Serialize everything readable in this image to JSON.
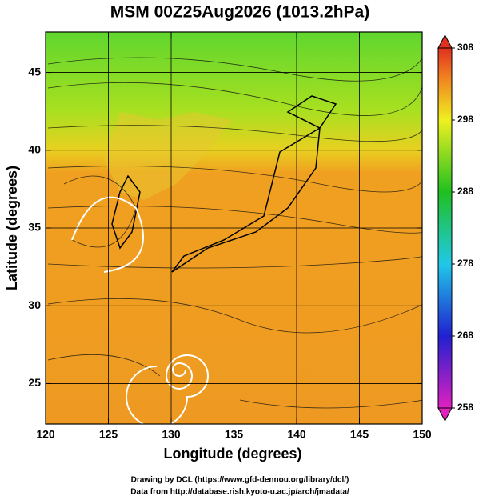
{
  "chart_data": {
    "type": "map",
    "title": "MSM 00Z25Aug2026 (1013.2hPa)",
    "x_label": "Longitude (degrees)",
    "y_label": "Latitude  (degrees)",
    "xlim": [
      120,
      150
    ],
    "xticks": [
      120,
      125,
      130,
      135,
      140,
      145,
      150
    ],
    "ylim": [
      22.4,
      47.6
    ],
    "yticks": [
      25,
      30,
      35,
      40,
      45
    ],
    "grid": true,
    "colorbar": {
      "lim": [
        258,
        308
      ],
      "ticks": [
        258,
        268,
        278,
        288,
        298,
        308
      ]
    },
    "credits": [
      "Drawing by DCL (https://www.gfd-dennou.org/library/dcl/)",
      "Data from http://database.rish.kyoto-u.ac.jp/arch/jmadata/"
    ]
  }
}
